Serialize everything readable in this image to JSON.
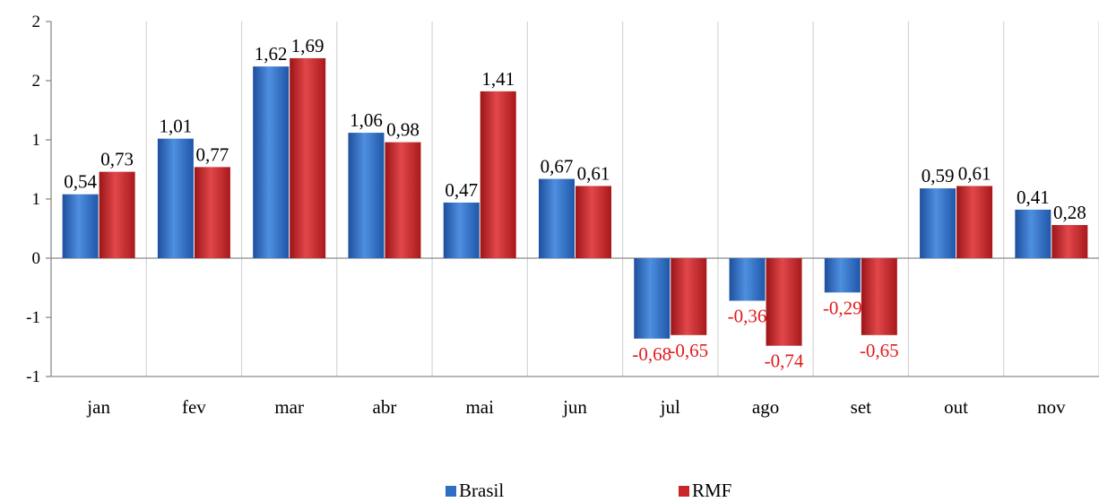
{
  "chart_data": {
    "type": "bar",
    "categories": [
      "jan",
      "fev",
      "mar",
      "abr",
      "mai",
      "jun",
      "jul",
      "ago",
      "set",
      "out",
      "nov"
    ],
    "series": [
      {
        "name": "Brasil",
        "values": [
          0.54,
          1.01,
          1.62,
          1.06,
          0.47,
          0.67,
          -0.68,
          -0.36,
          -0.29,
          0.59,
          0.41
        ],
        "labels": [
          "0,54",
          "1,01",
          "1,62",
          "1,06",
          "0,47",
          "0,67",
          "-0,68",
          "-0,36",
          "-0,29",
          "0,59",
          "0,41"
        ],
        "color": "#2f6ec4"
      },
      {
        "name": "RMF",
        "values": [
          0.73,
          0.77,
          1.69,
          0.98,
          1.41,
          0.61,
          -0.65,
          -0.74,
          -0.65,
          0.61,
          0.28
        ],
        "labels": [
          "0,73",
          "0,77",
          "1,69",
          "0,98",
          "1,41",
          "0,61",
          "-0,65",
          "-0,74",
          "-0,65",
          "0,61",
          "0,28"
        ],
        "color": "#c8262a"
      }
    ],
    "y_ticks": [
      {
        "value": 2.0,
        "label": "2"
      },
      {
        "value": 1.5,
        "label": "2"
      },
      {
        "value": 1.0,
        "label": "1"
      },
      {
        "value": 0.5,
        "label": "1"
      },
      {
        "value": 0.0,
        "label": "0"
      },
      {
        "value": -0.5,
        "label": "-1"
      },
      {
        "value": -1.0,
        "label": "-1"
      }
    ],
    "ylim": [
      -1,
      2
    ],
    "positive_label_color": "#000000",
    "negative_label_color": "#e31a1c",
    "grid": "vertical",
    "legend_position": "bottom"
  }
}
